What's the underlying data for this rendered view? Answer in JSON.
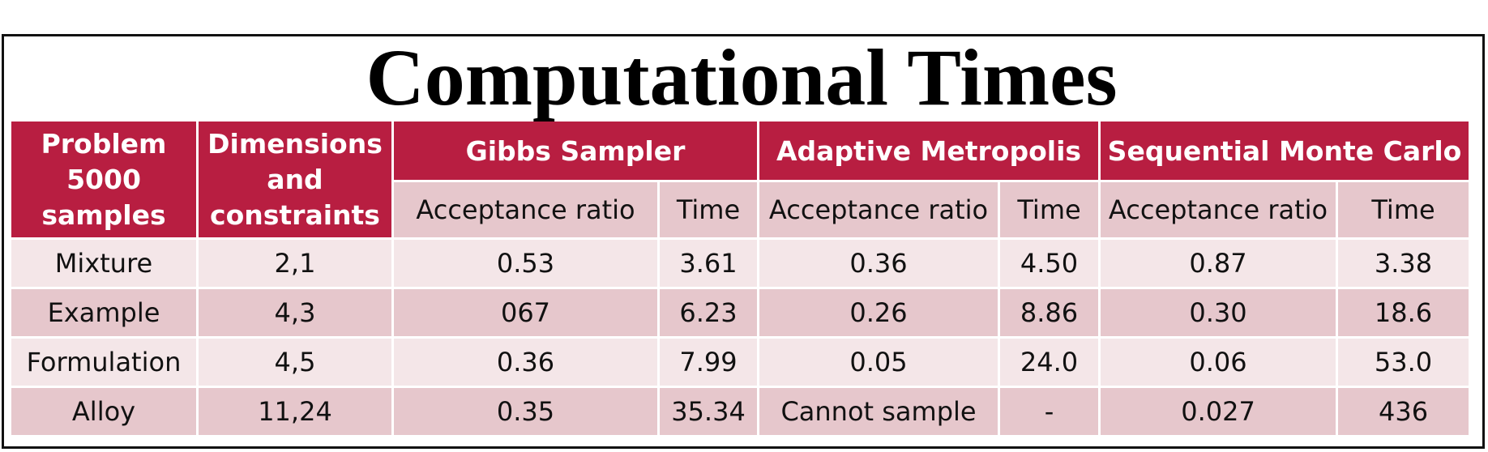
{
  "title": "Computational Times",
  "header": {
    "problem_lines": [
      "Problem",
      "5000",
      "samples"
    ],
    "dims_lines": [
      "Dimensions",
      "and",
      "constraints"
    ],
    "methods": [
      "Gibbs Sampler",
      "Adaptive Metropolis",
      "Sequential Monte Carlo"
    ],
    "sub_acceptance": "Acceptance ratio",
    "sub_time": "Time"
  },
  "rows": [
    {
      "problem": "Mixture",
      "dims": "2,1",
      "gibbs_acc": "0.53",
      "gibbs_time": "3.61",
      "am_acc": "0.36",
      "am_time": "4.50",
      "smc_acc": "0.87",
      "smc_time": "3.38"
    },
    {
      "problem": "Example",
      "dims": "4,3",
      "gibbs_acc": "067",
      "gibbs_time": "6.23",
      "am_acc": "0.26",
      "am_time": "8.86",
      "smc_acc": "0.30",
      "smc_time": "18.6"
    },
    {
      "problem": "Formulation",
      "dims": "4,5",
      "gibbs_acc": "0.36",
      "gibbs_time": "7.99",
      "am_acc": "0.05",
      "am_time": "24.0",
      "smc_acc": "0.06",
      "smc_time": "53.0"
    },
    {
      "problem": "Alloy",
      "dims": "11,24",
      "gibbs_acc": "0.35",
      "gibbs_time": "35.34",
      "am_acc": "Cannot sample",
      "am_time": "-",
      "smc_acc": "0.027",
      "smc_time": "436"
    }
  ],
  "colors": {
    "header_red": "#b81e41",
    "row_light": "#f4e6e8",
    "row_dark": "#e6c7cc",
    "frame": "#111111"
  }
}
